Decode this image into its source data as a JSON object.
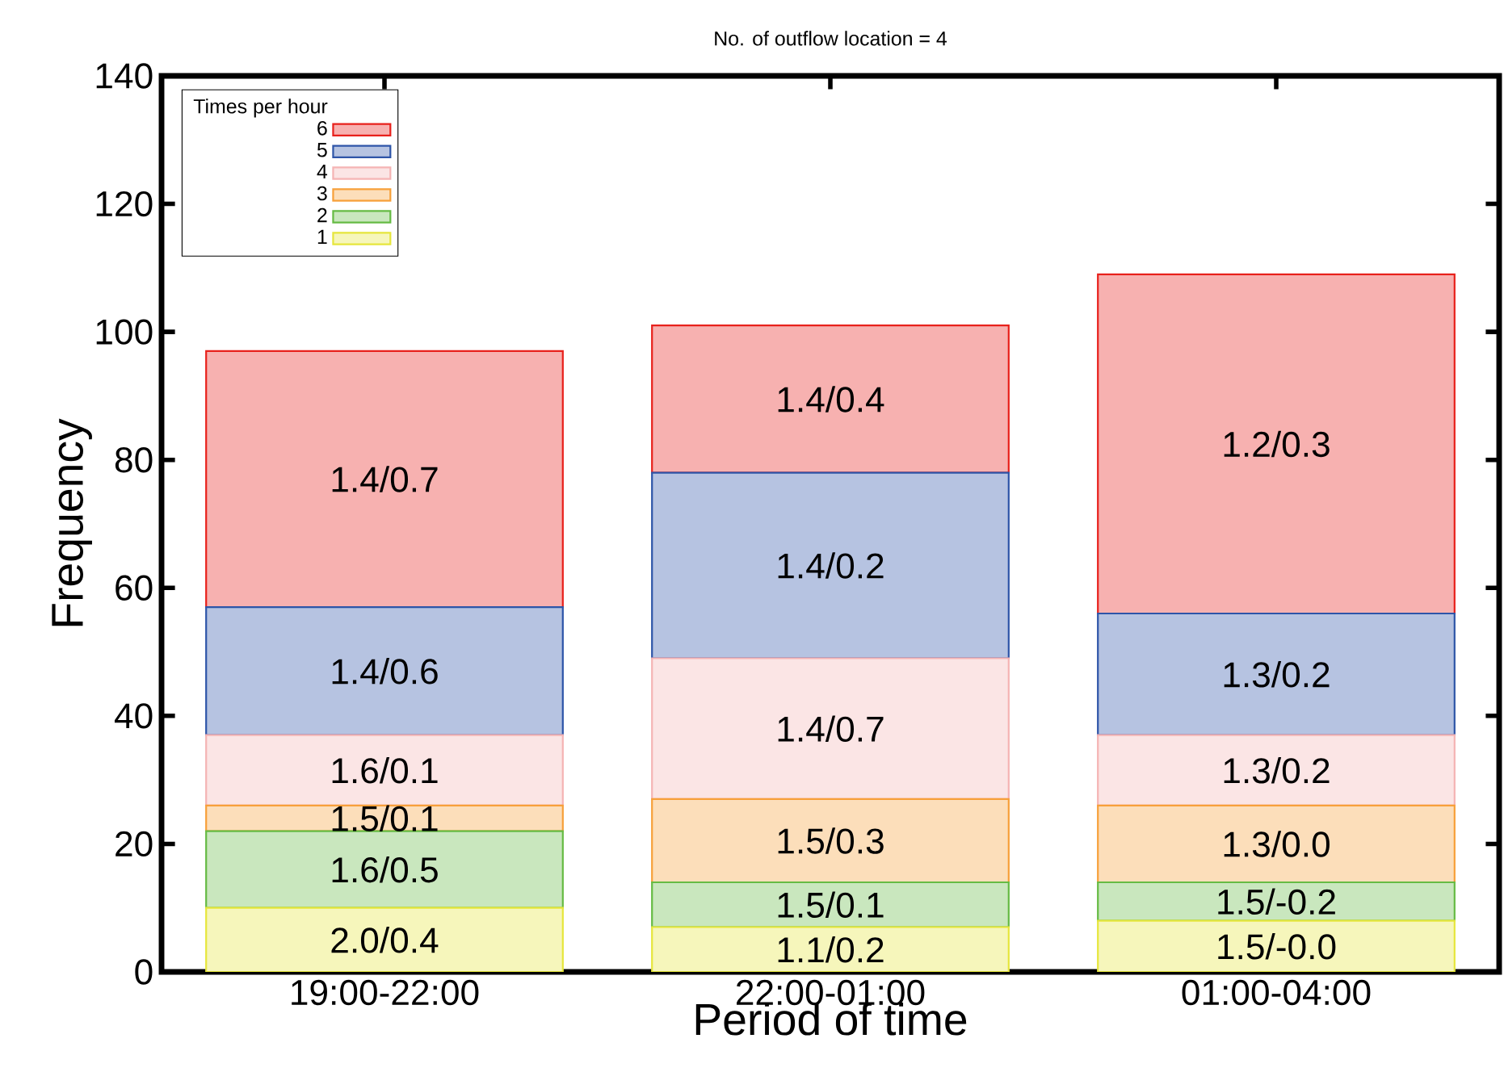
{
  "chart_data": {
    "type": "bar",
    "stacked": true,
    "title": "No. of outflow location = 4",
    "xlabel": "Period of time",
    "ylabel": "Frequency",
    "legend_title": "Times per hour",
    "legend": "top left",
    "categories": [
      "19:00-22:00",
      "22:00-01:00",
      "01:00-04:00"
    ],
    "ylim": [
      0,
      140
    ],
    "yticks": [
      0,
      20,
      40,
      60,
      80,
      100,
      120,
      140
    ],
    "series": [
      {
        "name": "1",
        "color": "#e6e63c",
        "values": [
          10,
          7,
          8
        ],
        "value_labels": [
          "2.0/0.4",
          "1.1/0.2",
          "1.5/-0.0"
        ]
      },
      {
        "name": "2",
        "color": "#66bb44",
        "values": [
          12,
          7,
          6
        ],
        "value_labels": [
          "1.6/0.5",
          "1.5/0.1",
          "1.5/-0.2"
        ]
      },
      {
        "name": "3",
        "color": "#f7a03a",
        "values": [
          4,
          13,
          12
        ],
        "value_labels": [
          "1.5/0.1",
          "1.5/0.3",
          "1.3/0.0"
        ]
      },
      {
        "name": "4",
        "color": "#f5b4b4",
        "values": [
          11,
          22,
          11
        ],
        "value_labels": [
          "1.6/0.1",
          "1.4/0.7",
          "1.3/0.2"
        ]
      },
      {
        "name": "5",
        "color": "#2e55a8",
        "values": [
          20,
          29,
          19
        ],
        "value_labels": [
          "1.4/0.6",
          "1.4/0.2",
          "1.3/0.2"
        ]
      },
      {
        "name": "6",
        "color": "#e8211c",
        "values": [
          40,
          23,
          53
        ],
        "value_labels": [
          "1.4/0.7",
          "1.4/0.4",
          "1.2/0.3"
        ]
      }
    ]
  }
}
